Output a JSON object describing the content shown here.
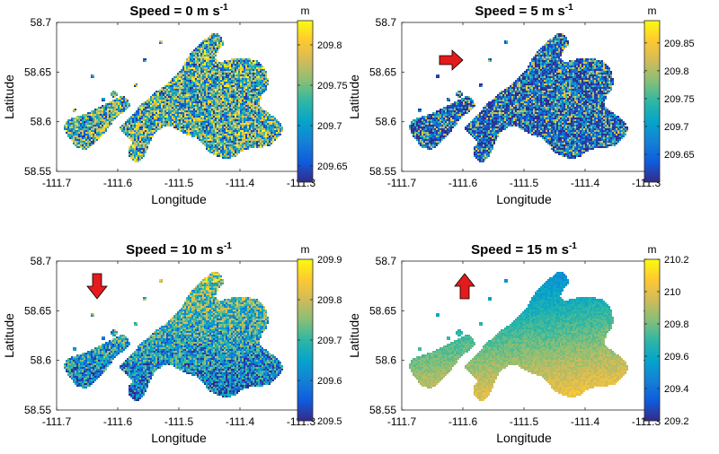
{
  "figure": {
    "xlabel": "Longitude",
    "ylabel": "Latitude"
  },
  "colormap": [
    "#352a87",
    "#0f5cdd",
    "#1481d6",
    "#06a4ca",
    "#2eb7a4",
    "#87bf77",
    "#d1bb59",
    "#fec832",
    "#f9fb0e"
  ],
  "arrow_color": "#e41a1c",
  "chart_data": [
    {
      "type": "heatmap",
      "title": "Speed = 0 m s-1",
      "title_main": "Speed = 0 m s",
      "title_sup": "-1",
      "xlabel": "Longitude",
      "ylabel": "Latitude",
      "xlim": [
        -111.7,
        -111.3
      ],
      "ylim": [
        58.55,
        58.7
      ],
      "xticks": [
        "-111.7",
        "-111.6",
        "-111.5",
        "-111.4",
        "-111.3"
      ],
      "yticks": [
        "58.55",
        "58.6",
        "58.65",
        "58.7"
      ],
      "colorbar": {
        "label": "m",
        "range": [
          209.63,
          209.83
        ],
        "ticks": [
          209.65,
          209.7,
          209.75,
          209.8
        ],
        "tick_labels": [
          "209.65",
          "209.7",
          "209.75",
          "209.8"
        ]
      },
      "field": {
        "pattern": "uniform_noise",
        "gradient": "none"
      },
      "wind_arrow": null
    },
    {
      "type": "heatmap",
      "title": "Speed = 5 m s-1",
      "title_main": "Speed = 5 m s",
      "title_sup": "-1",
      "xlabel": "Longitude",
      "ylabel": "Latitude",
      "xlim": [
        -111.7,
        -111.3
      ],
      "ylim": [
        58.55,
        58.7
      ],
      "xticks": [
        "-111.7",
        "-111.6",
        "-111.5",
        "-111.4",
        "-111.3"
      ],
      "yticks": [
        "58.55",
        "58.6",
        "58.65",
        "58.7"
      ],
      "colorbar": {
        "label": "m",
        "range": [
          209.6,
          209.89
        ],
        "ticks": [
          209.65,
          209.7,
          209.75,
          209.8,
          209.85
        ],
        "tick_labels": [
          "209.65",
          "209.7",
          "209.75",
          "209.8",
          "209.85"
        ]
      },
      "field": {
        "pattern": "low_noise",
        "gradient": "none"
      },
      "wind_arrow": "east"
    },
    {
      "type": "heatmap",
      "title": "Speed = 10 m s-1",
      "title_main": "Speed = 10 m s",
      "title_sup": "-1",
      "xlabel": "Longitude",
      "ylabel": "Latitude",
      "xlim": [
        -111.7,
        -111.3
      ],
      "ylim": [
        58.55,
        58.7
      ],
      "xticks": [
        "-111.7",
        "-111.6",
        "-111.5",
        "-111.4",
        "-111.3"
      ],
      "yticks": [
        "58.55",
        "58.6",
        "58.65",
        "58.7"
      ],
      "colorbar": {
        "label": "m",
        "range": [
          209.5,
          209.9
        ],
        "ticks": [
          209.5,
          209.6,
          209.7,
          209.8,
          209.9
        ],
        "tick_labels": [
          "209.5",
          "209.6",
          "209.7",
          "209.8",
          "209.9"
        ]
      },
      "field": {
        "pattern": "gradient_noise",
        "gradient": "higher_north"
      },
      "wind_arrow": "south"
    },
    {
      "type": "heatmap",
      "title": "Speed = 15 m s-1",
      "title_main": "Speed = 15 m s",
      "title_sup": "-1",
      "xlabel": "Longitude",
      "ylabel": "Latitude",
      "xlim": [
        -111.7,
        -111.3
      ],
      "ylim": [
        58.55,
        58.7
      ],
      "xticks": [
        "-111.7",
        "-111.6",
        "-111.5",
        "-111.4",
        "-111.3"
      ],
      "yticks": [
        "58.55",
        "58.6",
        "58.65",
        "58.7"
      ],
      "colorbar": {
        "label": "m",
        "range": [
          209.2,
          210.2
        ],
        "ticks": [
          209.2,
          209.4,
          209.6,
          209.8,
          210.0,
          210.2
        ],
        "tick_labels": [
          "209.2",
          "209.4",
          "209.6",
          "209.8",
          "210",
          "210.2"
        ]
      },
      "field": {
        "pattern": "smooth_gradient",
        "gradient": "higher_south"
      },
      "wind_arrow": "north"
    }
  ]
}
